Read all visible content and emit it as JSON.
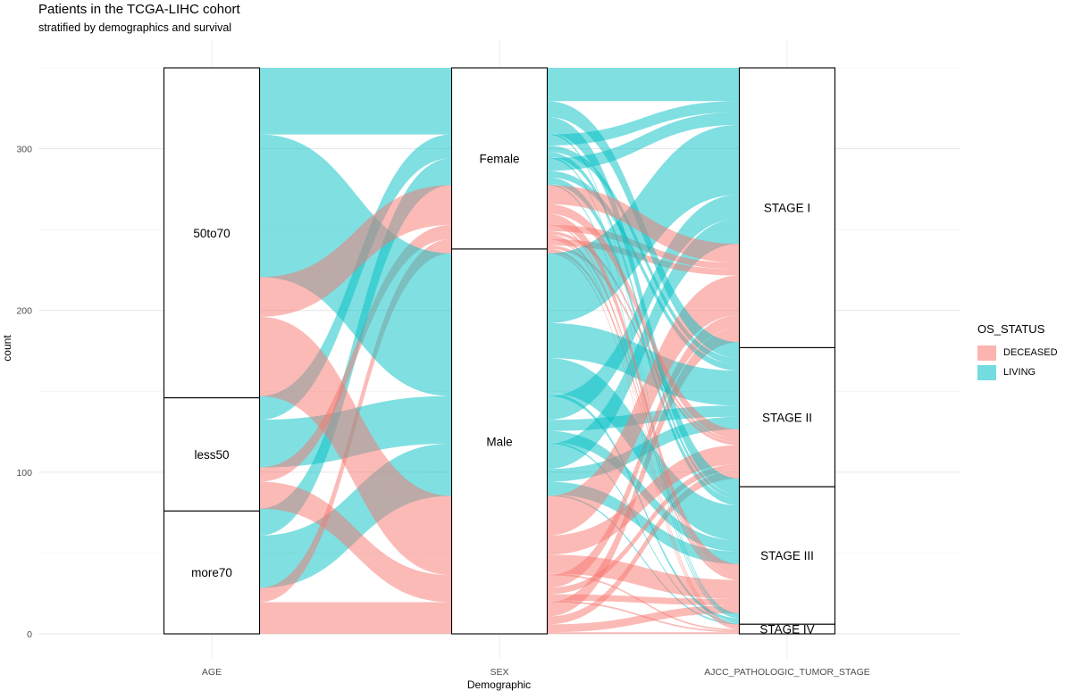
{
  "title": "Patients in the TCGA-LIHC cohort",
  "subtitle": "stratified by demographics and survival",
  "legend": {
    "title": "OS_STATUS",
    "items": [
      {
        "label": "DECEASED",
        "color": "#F8766D"
      },
      {
        "label": "LIVING",
        "color": "#00BFC4"
      }
    ]
  },
  "chart_data": {
    "type": "alluvial",
    "title": "Patients in the TCGA-LIHC cohort",
    "subtitle": "stratified by demographics and survival",
    "xlabel": "Demographic",
    "ylabel": "count",
    "ylim": [
      0,
      350
    ],
    "yticks": [
      0,
      100,
      200,
      300
    ],
    "fill_variable": "OS_STATUS",
    "axes": [
      {
        "label": "AGE",
        "strata": [
          {
            "name": "more70",
            "count": 76
          },
          {
            "name": "less50",
            "count": 70
          },
          {
            "name": "50to70",
            "count": 204
          }
        ]
      },
      {
        "label": "SEX",
        "strata": [
          {
            "name": "Male",
            "count": 238
          },
          {
            "name": "Female",
            "count": 112
          }
        ]
      },
      {
        "label": "AJCC_PATHOLOGIC_TUMOR_STAGE",
        "strata": [
          {
            "name": "STAGE IV",
            "count": 6
          },
          {
            "name": "STAGE III",
            "count": 85
          },
          {
            "name": "STAGE II",
            "count": 86
          },
          {
            "name": "STAGE I",
            "count": 173
          }
        ]
      }
    ]
  }
}
